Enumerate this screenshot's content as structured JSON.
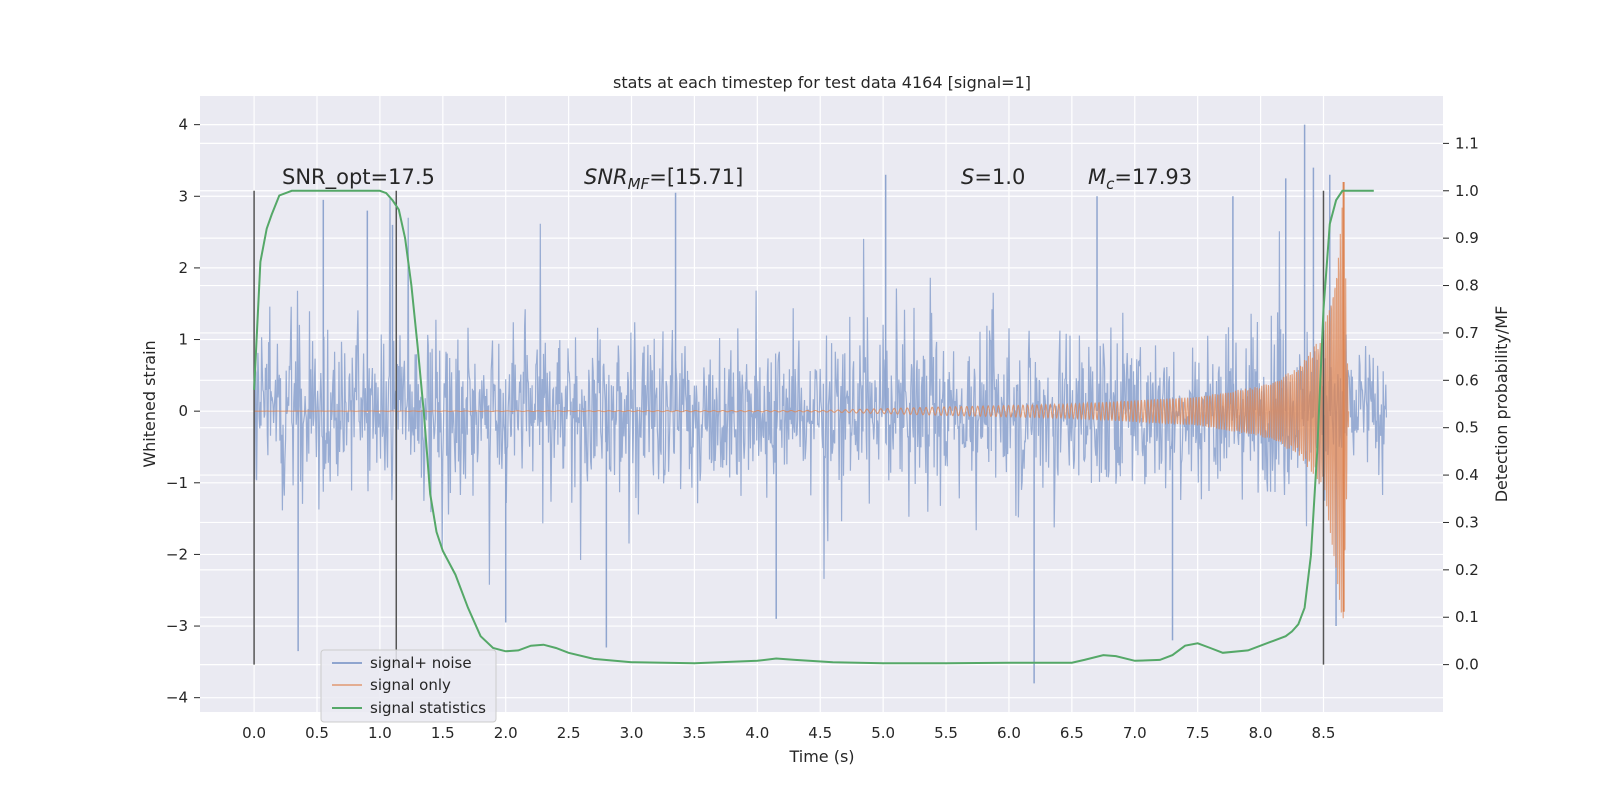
{
  "chart_data": {
    "type": "line",
    "title": "stats at each timestep for test data 4164 [signal=1]",
    "xlabel": "Time (s)",
    "ylabel": "Whitened strain",
    "y2label": "Detection probability/MF",
    "xlim": [
      -0.43,
      9.45
    ],
    "ylim": [
      -4.2,
      4.4
    ],
    "y2lim": [
      -0.1,
      1.2
    ],
    "xticks": [
      "0.0",
      "0.5",
      "1.0",
      "1.5",
      "2.0",
      "2.5",
      "3.0",
      "3.5",
      "4.0",
      "4.5",
      "5.0",
      "5.5",
      "6.0",
      "6.5",
      "7.0",
      "7.5",
      "8.0",
      "8.5"
    ],
    "yticks": [
      "4",
      "3",
      "2",
      "1",
      "0",
      "−1",
      "−2",
      "−3",
      "−4"
    ],
    "y2ticks": [
      "1.1",
      "1.0",
      "0.9",
      "0.8",
      "0.7",
      "0.6",
      "0.5",
      "0.4",
      "0.3",
      "0.2",
      "0.1",
      "0.0"
    ],
    "grid": true,
    "legend_position": "lower-left",
    "colors": {
      "background": "#eaeaf2",
      "grid": "#ffffff",
      "noise": "#8fa5cf",
      "signal": "#dd8452",
      "stats": "#55a868",
      "vline": "#555555"
    },
    "annotations": {
      "snr_opt": "SNR_opt=17.5",
      "snr_mf_base": "SNR",
      "snr_mf_sub": "MF",
      "snr_mf_value": "=[15.71]",
      "s_sym": "S",
      "s_value": "=1.0",
      "mc_sym": "M",
      "mc_sub": "c",
      "mc_value": "=17.93"
    },
    "vertical_lines_x": [
      0.0,
      1.13,
      8.5
    ],
    "series": [
      {
        "name": "signal+ noise",
        "duration": 9.0,
        "envelope_y": [
          2.1,
          -2.1
        ],
        "peak_x": [
          0.35,
          0.55,
          0.9,
          1.1,
          2.0,
          2.8,
          3.35,
          4.15,
          5.02,
          6.2,
          6.7,
          7.3,
          7.78,
          8.2,
          8.35,
          8.42,
          8.55,
          8.6
        ],
        "peak_y": [
          -3.35,
          2.95,
          2.8,
          2.6,
          -2.95,
          -3.3,
          3.05,
          -2.9,
          3.3,
          -3.8,
          3.0,
          -3.2,
          3.0,
          3.25,
          4.0,
          3.4,
          3.3,
          -3.0
        ]
      },
      {
        "name": "signal only",
        "x": [
          0.0,
          4.5,
          5.5,
          6.5,
          7.0,
          7.5,
          8.0,
          8.3,
          8.5,
          8.6,
          8.66,
          8.7
        ],
        "amp": [
          0.0,
          0.01,
          0.06,
          0.1,
          0.15,
          0.2,
          0.35,
          0.6,
          1.1,
          2.2,
          3.2,
          0.0
        ],
        "peak_y": 3.2,
        "trough_y": -2.8
      },
      {
        "name": "signal statistics",
        "x": [
          0.0,
          0.05,
          0.1,
          0.14,
          0.2,
          0.3,
          0.5,
          0.7,
          0.9,
          1.0,
          1.05,
          1.1,
          1.15,
          1.2,
          1.25,
          1.3,
          1.35,
          1.4,
          1.45,
          1.5,
          1.6,
          1.7,
          1.8,
          1.9,
          2.0,
          2.1,
          2.2,
          2.3,
          2.4,
          2.5,
          2.7,
          3.0,
          3.5,
          4.0,
          4.15,
          4.3,
          4.6,
          5.0,
          5.5,
          6.0,
          6.5,
          6.6,
          6.75,
          6.85,
          7.0,
          7.2,
          7.3,
          7.4,
          7.5,
          7.6,
          7.7,
          7.9,
          8.1,
          8.2,
          8.25,
          8.3,
          8.35,
          8.4,
          8.45,
          8.5,
          8.55,
          8.6,
          8.65,
          8.8,
          8.9
        ],
        "y": [
          0.58,
          0.85,
          0.92,
          0.95,
          0.99,
          1.0,
          1.0,
          1.0,
          1.0,
          1.0,
          0.995,
          0.98,
          0.96,
          0.9,
          0.8,
          0.67,
          0.53,
          0.36,
          0.28,
          0.24,
          0.19,
          0.12,
          0.06,
          0.035,
          0.028,
          0.03,
          0.04,
          0.042,
          0.035,
          0.025,
          0.012,
          0.005,
          0.003,
          0.008,
          0.013,
          0.01,
          0.005,
          0.003,
          0.003,
          0.004,
          0.004,
          0.01,
          0.02,
          0.018,
          0.008,
          0.01,
          0.02,
          0.04,
          0.045,
          0.035,
          0.025,
          0.03,
          0.05,
          0.06,
          0.07,
          0.085,
          0.12,
          0.23,
          0.45,
          0.75,
          0.93,
          0.98,
          1.0,
          1.0,
          1.0
        ]
      }
    ]
  }
}
